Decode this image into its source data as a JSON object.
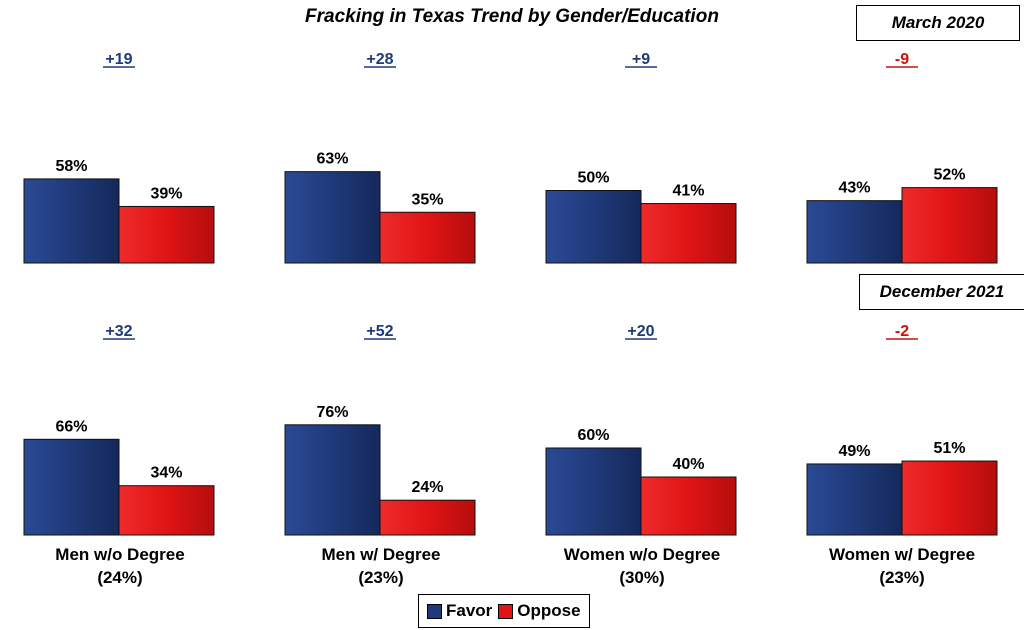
{
  "title": "Fracking in Texas Trend by Gender/Education",
  "periods": [
    "March 2020",
    "December 2021"
  ],
  "legend": {
    "favor": "Favor",
    "oppose": "Oppose"
  },
  "colors": {
    "favor": "#1f3a7a",
    "oppose": "#e01414",
    "positive_diff": "#1f3a7a",
    "negative_diff": "#cc1111"
  },
  "chart_data": [
    {
      "type": "bar",
      "period": "March 2020",
      "categories": [
        "Men w/o Degree (24%)",
        "Men w/ Degree (23%)",
        "Women w/o Degree (30%)",
        "Women w/ Degree (23%)"
      ],
      "series": [
        {
          "name": "Favor",
          "values": [
            58,
            63,
            50,
            43
          ]
        },
        {
          "name": "Oppose",
          "values": [
            39,
            35,
            41,
            52
          ]
        }
      ],
      "differences": [
        "+19",
        "+28",
        "+9",
        "-9"
      ],
      "value_labels_favor": [
        "58%",
        "63%",
        "50%",
        "43%"
      ],
      "value_labels_oppose": [
        "39%",
        "35%",
        "41%",
        "52%"
      ]
    },
    {
      "type": "bar",
      "period": "December 2021",
      "categories": [
        "Men w/o Degree (24%)",
        "Men w/ Degree (23%)",
        "Women w/o Degree (30%)",
        "Women w/ Degree (23%)"
      ],
      "series": [
        {
          "name": "Favor",
          "values": [
            66,
            76,
            60,
            49
          ]
        },
        {
          "name": "Oppose",
          "values": [
            34,
            24,
            40,
            51
          ]
        }
      ],
      "differences": [
        "+32",
        "+52",
        "+20",
        "-2"
      ],
      "value_labels_favor": [
        "66%",
        "76%",
        "60%",
        "49%"
      ],
      "value_labels_oppose": [
        "34%",
        "24%",
        "40%",
        "51%"
      ]
    }
  ],
  "category_labels": [
    {
      "line1": "Men w/o Degree",
      "line2": "(24%)"
    },
    {
      "line1": "Men w/ Degree",
      "line2": "(23%)"
    },
    {
      "line1": "Women w/o Degree",
      "line2": "(30%)"
    },
    {
      "line1": "Women w/ Degree",
      "line2": "(23%)"
    }
  ]
}
